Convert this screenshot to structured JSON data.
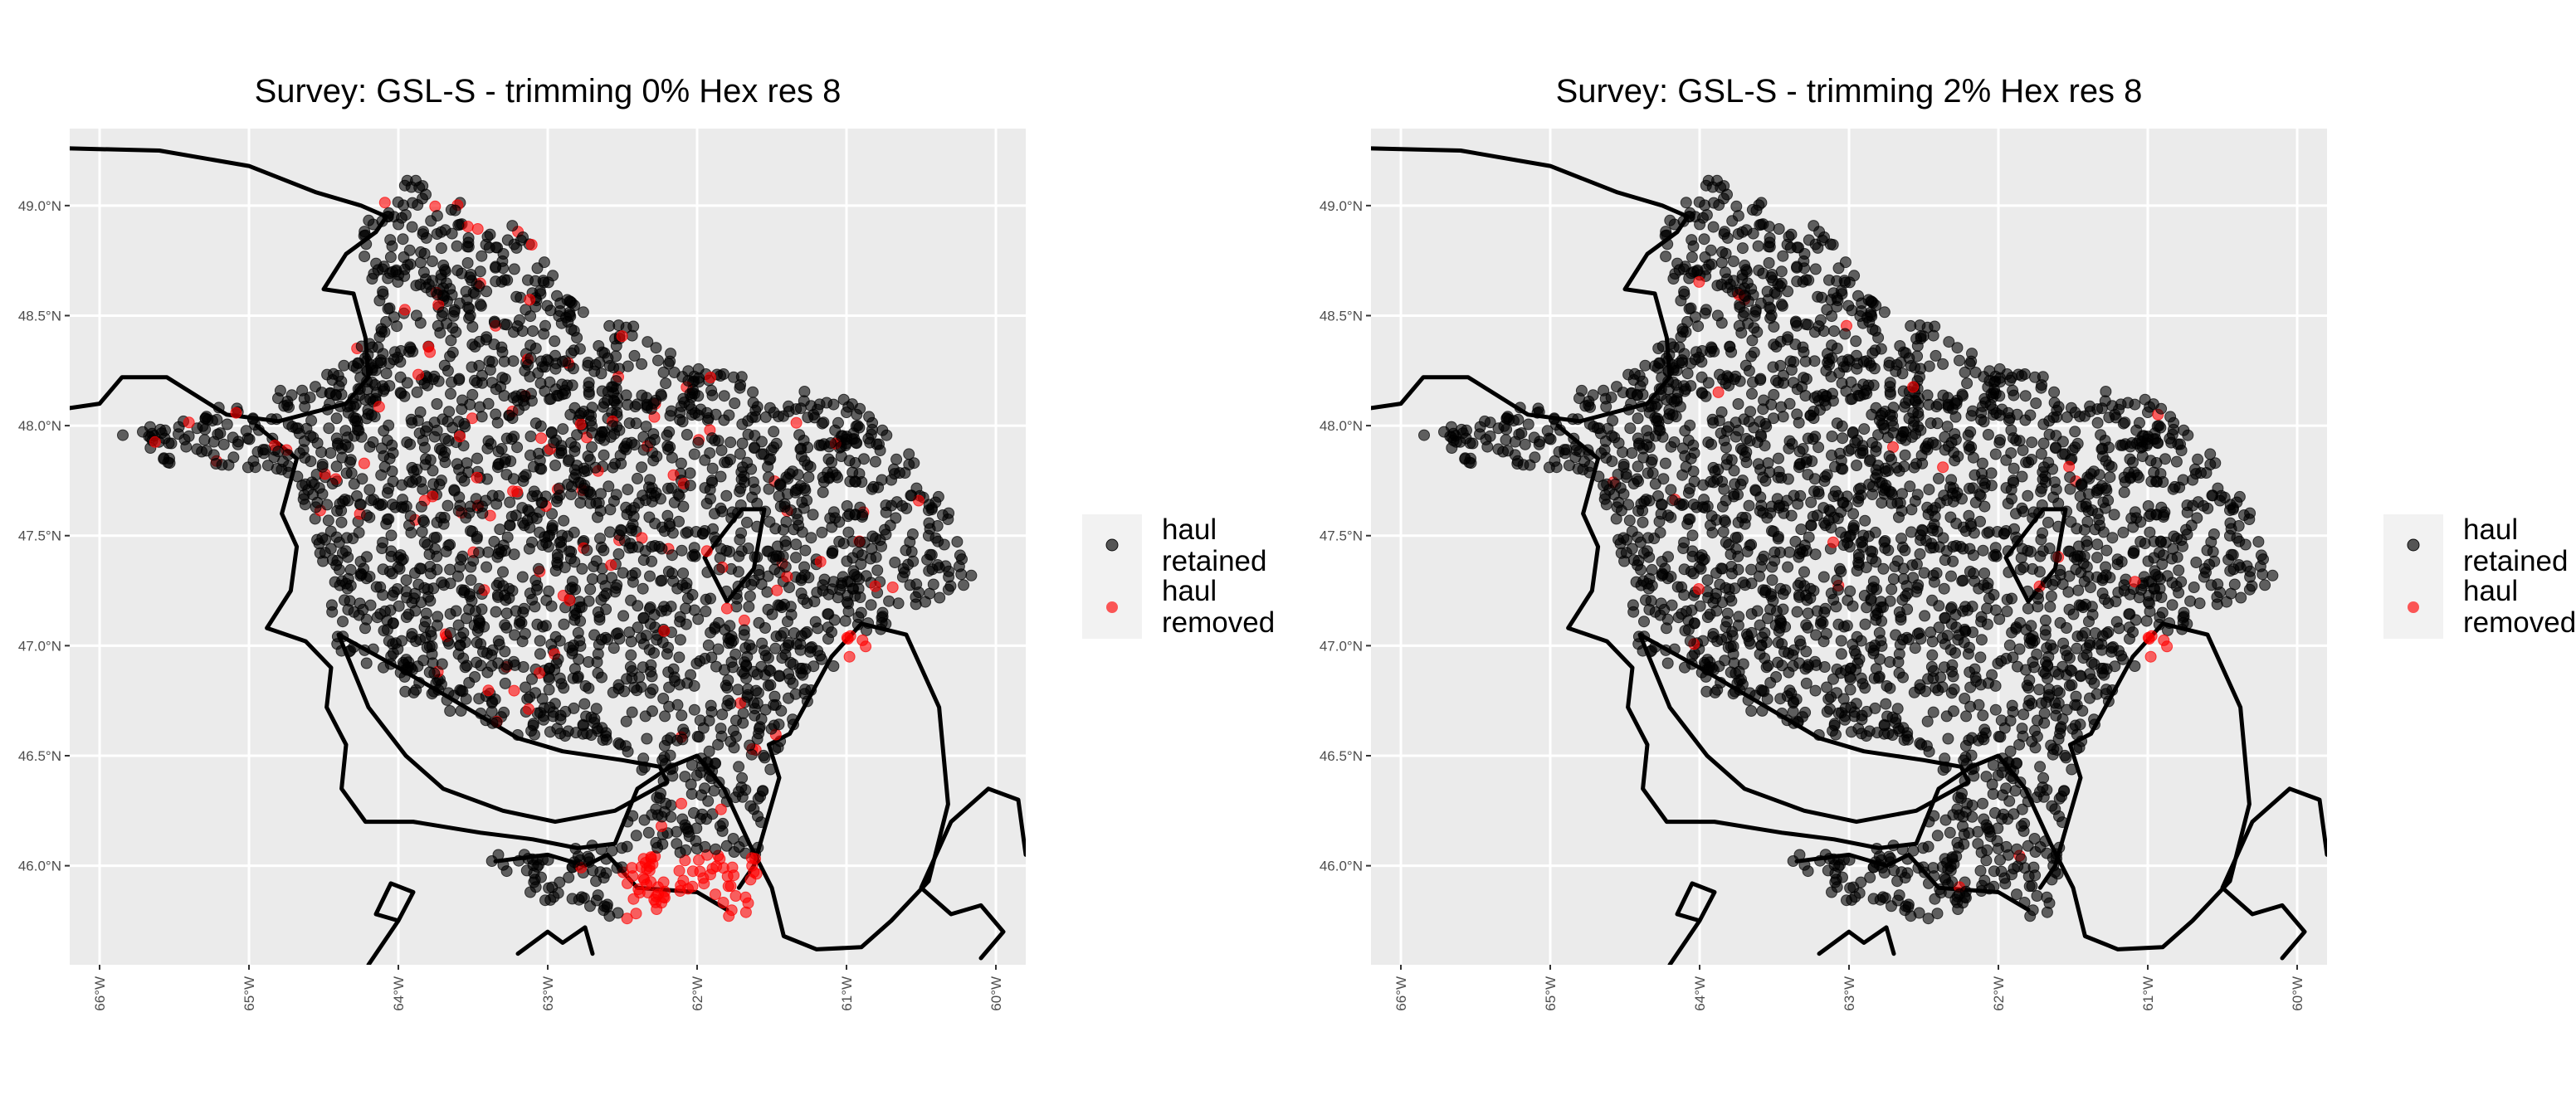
{
  "panels": [
    {
      "title": "Survey: GSL-S - trimming 0% Hex res 8",
      "removed_share": "heavy",
      "legend": [
        {
          "label": [
            "haul",
            "retained"
          ],
          "color": "#000000"
        },
        {
          "label": [
            "haul",
            "removed"
          ],
          "color": "#ff0000"
        }
      ]
    },
    {
      "title": "Survey: GSL-S - trimming 2% Hex res 8",
      "removed_share": "light",
      "legend": [
        {
          "label": [
            "haul",
            "retained"
          ],
          "color": "#000000"
        },
        {
          "label": [
            "haul",
            "removed"
          ],
          "color": "#ff0000"
        }
      ]
    }
  ],
  "map": {
    "lat_ticks": [
      "49.0°N",
      "48.5°N",
      "48.0°N",
      "47.5°N",
      "47.0°N",
      "46.5°N",
      "46.0°N"
    ],
    "lat_values": [
      49.0,
      48.5,
      48.0,
      47.5,
      47.0,
      46.5,
      46.0
    ],
    "lon_ticks": [
      "66°W",
      "65°W",
      "64°W",
      "63°W",
      "62°W",
      "61°W",
      "60°W"
    ],
    "lon_values": [
      -66,
      -65,
      -64,
      -63,
      -62,
      -61,
      -60
    ],
    "xlim": [
      -66.2,
      -59.8
    ],
    "ylim": [
      45.55,
      49.35
    ],
    "panel_background": "#ebebeb",
    "retained_color": "#000000",
    "removed_color": "#ff0000"
  }
}
